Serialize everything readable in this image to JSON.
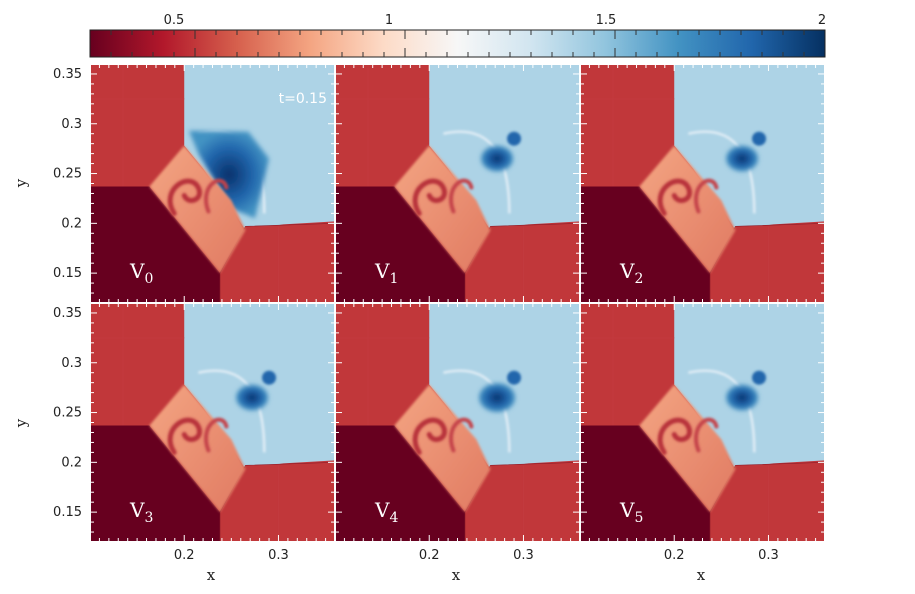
{
  "chart_data": {
    "type": "heatmap",
    "colorbar": {
      "ticks": [
        0.5,
        1,
        1.5,
        2
      ],
      "tick_labels": [
        "0.5",
        "1",
        "1.5",
        "2"
      ],
      "range": [
        0.25,
        2
      ],
      "colormap": "RdBu",
      "stops": [
        "#67001f",
        "#b2182b",
        "#d6604d",
        "#f4a582",
        "#fddbc7",
        "#f7f7f7",
        "#d1e5f0",
        "#92c5de",
        "#4393c3",
        "#2166ac",
        "#053061"
      ]
    },
    "xlabel": "x",
    "ylabel": "y",
    "xlim": [
      0.1,
      0.36
    ],
    "ylim": [
      0.12,
      0.36
    ],
    "x_ticks": [
      0.2,
      0.3
    ],
    "x_tick_labels": [
      "0.2",
      "0.3"
    ],
    "y_ticks": [
      0.15,
      0.2,
      0.25,
      0.3,
      0.35
    ],
    "y_tick_labels": [
      "0.15",
      "0.2",
      "0.25",
      "0.3",
      "0.35"
    ],
    "annotation": "t=0.15",
    "panels": [
      {
        "label": "V",
        "sub": "0"
      },
      {
        "label": "V",
        "sub": "1"
      },
      {
        "label": "V",
        "sub": "2"
      },
      {
        "label": "V",
        "sub": "3"
      },
      {
        "label": "V",
        "sub": "4"
      },
      {
        "label": "V",
        "sub": "5"
      }
    ],
    "region_values": {
      "upper_left": 0.5,
      "upper_right": 1.4,
      "lower_left": 0.15,
      "lower_right": 0.5,
      "wedge": 0.75,
      "core": 1.85
    }
  }
}
